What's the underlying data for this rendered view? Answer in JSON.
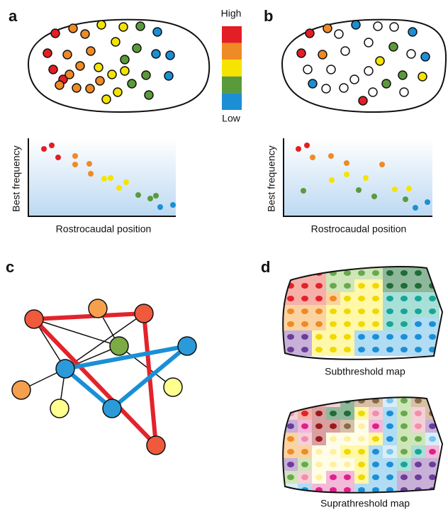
{
  "panels": {
    "a": {
      "label": "a",
      "x_axis": "Rostrocaudal position",
      "y_axis": "Best frequency"
    },
    "b": {
      "label": "b",
      "x_axis": "Rostrocaudal position",
      "y_axis": "Best frequency"
    },
    "c": {
      "label": "c"
    },
    "d": {
      "label": "d",
      "maps": [
        "Subthreshold map",
        "Suprathreshold map"
      ]
    }
  },
  "colorbar": {
    "high": "High",
    "low": "Low"
  }
}
